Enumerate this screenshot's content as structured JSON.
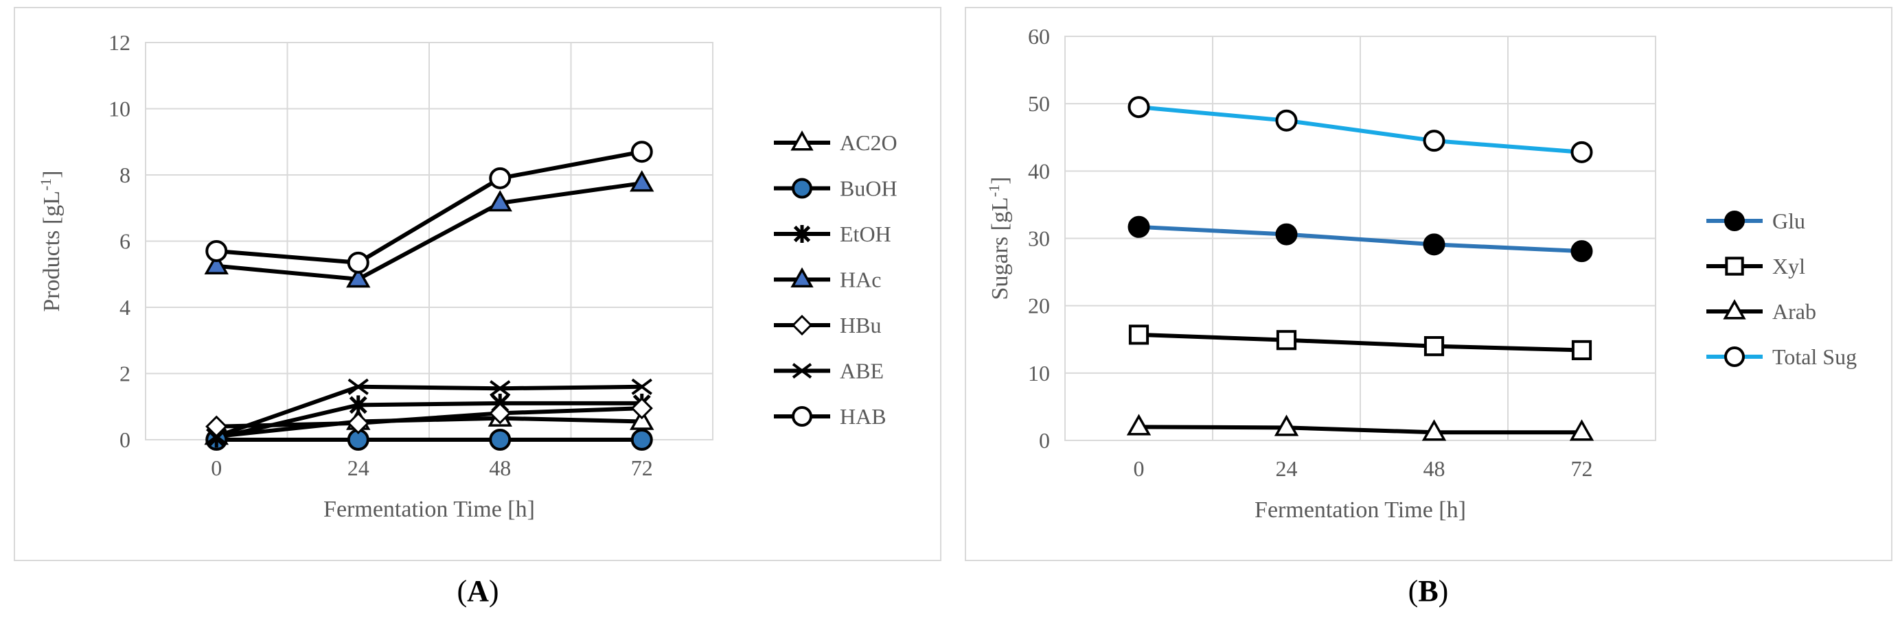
{
  "captions": {
    "a_open": "(",
    "a_letter": "A",
    "a_close": ")",
    "b_open": "(",
    "b_letter": "B",
    "b_close": ")"
  },
  "chart_data": [
    {
      "type": "line",
      "panel": "A",
      "xlabel": "Fermentation Time [h]",
      "ylabel": "Products [gL",
      "ylabel_sup": "-1",
      "ylabel_close": "]",
      "x": [
        0,
        24,
        48,
        72
      ],
      "xticks": [
        "0",
        "24",
        "48",
        "72"
      ],
      "ylim": [
        0,
        12
      ],
      "yticks": [
        "0",
        "2",
        "4",
        "6",
        "8",
        "10",
        "12"
      ],
      "grid": true,
      "legend_position": "right",
      "series": [
        {
          "name": "AC2O",
          "values": [
            0.1,
            0.55,
            0.65,
            0.55
          ],
          "color": "#000000",
          "marker": "triangle",
          "fill": "#ffffff"
        },
        {
          "name": "BuOH",
          "values": [
            0.0,
            0.0,
            0.0,
            0.0
          ],
          "color": "#000000",
          "marker": "circle",
          "fill": "#2e75b6"
        },
        {
          "name": "EtOH",
          "values": [
            0.05,
            1.05,
            1.1,
            1.1
          ],
          "color": "#000000",
          "marker": "star",
          "fill": "#000000"
        },
        {
          "name": "HAc",
          "values": [
            5.25,
            4.85,
            7.15,
            7.75
          ],
          "color": "#000000",
          "marker": "triangle",
          "fill": "#4472c4"
        },
        {
          "name": "HBu",
          "values": [
            0.4,
            0.5,
            0.8,
            0.95
          ],
          "color": "#000000",
          "marker": "diamond",
          "fill": "#ffffff"
        },
        {
          "name": "ABE",
          "values": [
            0.1,
            1.6,
            1.55,
            1.6
          ],
          "color": "#000000",
          "marker": "x",
          "fill": "#000000"
        },
        {
          "name": "HAB",
          "values": [
            5.7,
            5.35,
            7.9,
            8.7
          ],
          "color": "#000000",
          "marker": "circle",
          "fill": "#ffffff"
        }
      ]
    },
    {
      "type": "line",
      "panel": "B",
      "xlabel": "Fermentation Time [h]",
      "ylabel": "Sugars [gL",
      "ylabel_sup": "-1",
      "ylabel_close": "]",
      "x": [
        0,
        24,
        48,
        72
      ],
      "xticks": [
        "0",
        "24",
        "48",
        "72"
      ],
      "ylim": [
        0,
        60
      ],
      "yticks": [
        "0",
        "10",
        "20",
        "30",
        "40",
        "50",
        "60"
      ],
      "grid": true,
      "legend_position": "right",
      "series": [
        {
          "name": "Glu",
          "values": [
            31.7,
            30.6,
            29.1,
            28.1
          ],
          "color": "#2e75b6",
          "marker": "circle",
          "fill": "#000000"
        },
        {
          "name": "Xyl",
          "values": [
            15.7,
            14.9,
            14.0,
            13.4
          ],
          "color": "#000000",
          "marker": "square",
          "fill": "#ffffff"
        },
        {
          "name": "Arab",
          "values": [
            2.0,
            1.9,
            1.2,
            1.2
          ],
          "color": "#000000",
          "marker": "triangle",
          "fill": "#ffffff"
        },
        {
          "name": "Total Sug",
          "values": [
            49.5,
            47.5,
            44.5,
            42.8
          ],
          "color": "#19a9e6",
          "marker": "circle",
          "fill": "#ffffff"
        }
      ]
    }
  ]
}
